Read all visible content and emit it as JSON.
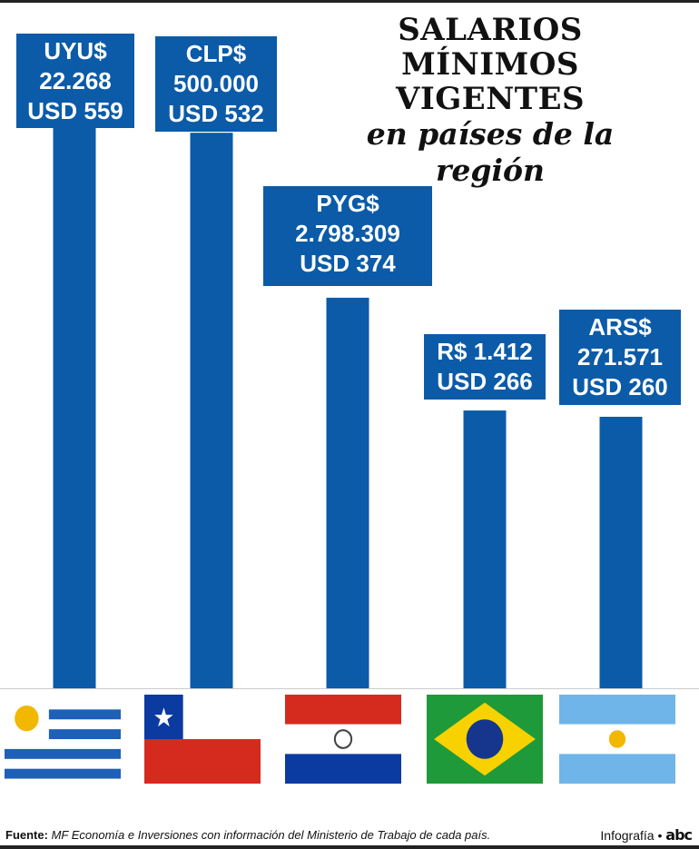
{
  "title": {
    "line1": "SALARIOS MÍNIMOS",
    "line2": "VIGENTES",
    "line3": "en países de la región"
  },
  "colors": {
    "bar": "#0b5ba8",
    "label_bg": "#0b5ba8",
    "label_text": "#ffffff"
  },
  "chart_data": {
    "type": "bar",
    "categories": [
      "Uruguay",
      "Chile",
      "Paraguay",
      "Brasil",
      "Argentina"
    ],
    "series": [
      {
        "values": [
          559,
          532,
          374,
          266,
          260
        ]
      }
    ],
    "unit": "USD",
    "labels": [
      {
        "local": "UYU$",
        "amount": "22.268",
        "usd": "USD 559"
      },
      {
        "local": "CLP$",
        "amount": "500.000",
        "usd": "USD 532"
      },
      {
        "local": "PYG$",
        "amount": "2.798.309",
        "usd": "USD 374"
      },
      {
        "local": "R$ 1.412",
        "amount": "",
        "usd": "USD 266"
      },
      {
        "local": "ARS$",
        "amount": "271.571",
        "usd": "USD 260"
      }
    ],
    "flags": [
      "uruguay-flag",
      "chile-flag",
      "paraguay-flag",
      "brazil-flag",
      "argentina-flag"
    ],
    "grid": false
  },
  "footer": {
    "source_label": "Fuente:",
    "source_text": "MF Economía e Inversiones con información del Ministerio de Trabajo de cada país.",
    "credit": "Infografía •",
    "logo": "abc"
  }
}
